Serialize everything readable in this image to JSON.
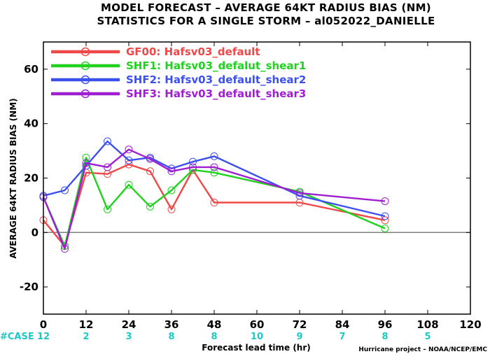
{
  "title_line1": "MODEL FORECAST – AVERAGE 64KT RADIUS BIAS (NM)",
  "title_line2": "STATISTICS FOR A SINGLE STORM – al052022_DANIELLE",
  "credit": "Hurricane project – NOAA/NCEP/EMC",
  "case_label": "#CASE",
  "colors": {
    "case_text": "#1ec8c8",
    "zero_line": "#808080"
  },
  "chart_data": {
    "type": "line",
    "xlabel": "Forecast lead time (hr)",
    "ylabel": "AVERAGE 64KT RADIUS BIAS (NM)",
    "xlim": [
      0,
      120
    ],
    "ylim": [
      -30,
      70
    ],
    "xticks": [
      0,
      12,
      24,
      36,
      48,
      60,
      72,
      84,
      96,
      108,
      120
    ],
    "yticks": [
      -20,
      0,
      20,
      40,
      60
    ],
    "legend_position": "top-left",
    "case_counts": [
      {
        "x": 0,
        "count": "12"
      },
      {
        "x": 12,
        "count": "2"
      },
      {
        "x": 24,
        "count": "3"
      },
      {
        "x": 36,
        "count": "8"
      },
      {
        "x": 48,
        "count": "8"
      },
      {
        "x": 60,
        "count": "10"
      },
      {
        "x": 72,
        "count": "9"
      },
      {
        "x": 84,
        "count": "7"
      },
      {
        "x": 96,
        "count": "8"
      },
      {
        "x": 108,
        "count": "5"
      }
    ],
    "series": [
      {
        "name": "GF00: Hafsv03_default",
        "color": "#f04848",
        "x": [
          0,
          6,
          12,
          18,
          24,
          30,
          36,
          42,
          48,
          72,
          96
        ],
        "y": [
          4.5,
          -5,
          22,
          21.5,
          25,
          22.5,
          8.5,
          23,
          11,
          11,
          4.5
        ]
      },
      {
        "name": "SHF1: Hafsv03_defalut_shear1",
        "color": "#1ed21e",
        "x": [
          0,
          6,
          12,
          18,
          24,
          30,
          36,
          42,
          48,
          72,
          96
        ],
        "y": [
          13,
          -5,
          27.5,
          8.5,
          17.5,
          9.5,
          15.5,
          23,
          22,
          15,
          1.5
        ]
      },
      {
        "name": "SHF2: Hafsv03_default_shear2",
        "color": "#3c50f0",
        "x": [
          0,
          6,
          12,
          18,
          24,
          30,
          36,
          42,
          48,
          72,
          96
        ],
        "y": [
          13.5,
          15.5,
          24.5,
          33.5,
          26.5,
          27.5,
          23.5,
          26,
          28,
          13.5,
          6
        ]
      },
      {
        "name": "SHF3: Hafsv03_default_shear3",
        "color": "#a01ed2",
        "x": [
          0,
          6,
          12,
          18,
          24,
          30,
          36,
          42,
          48,
          72,
          96
        ],
        "y": [
          13,
          -6,
          25.5,
          24,
          30.5,
          27,
          22.5,
          24,
          24,
          14.5,
          11.5
        ]
      }
    ]
  }
}
